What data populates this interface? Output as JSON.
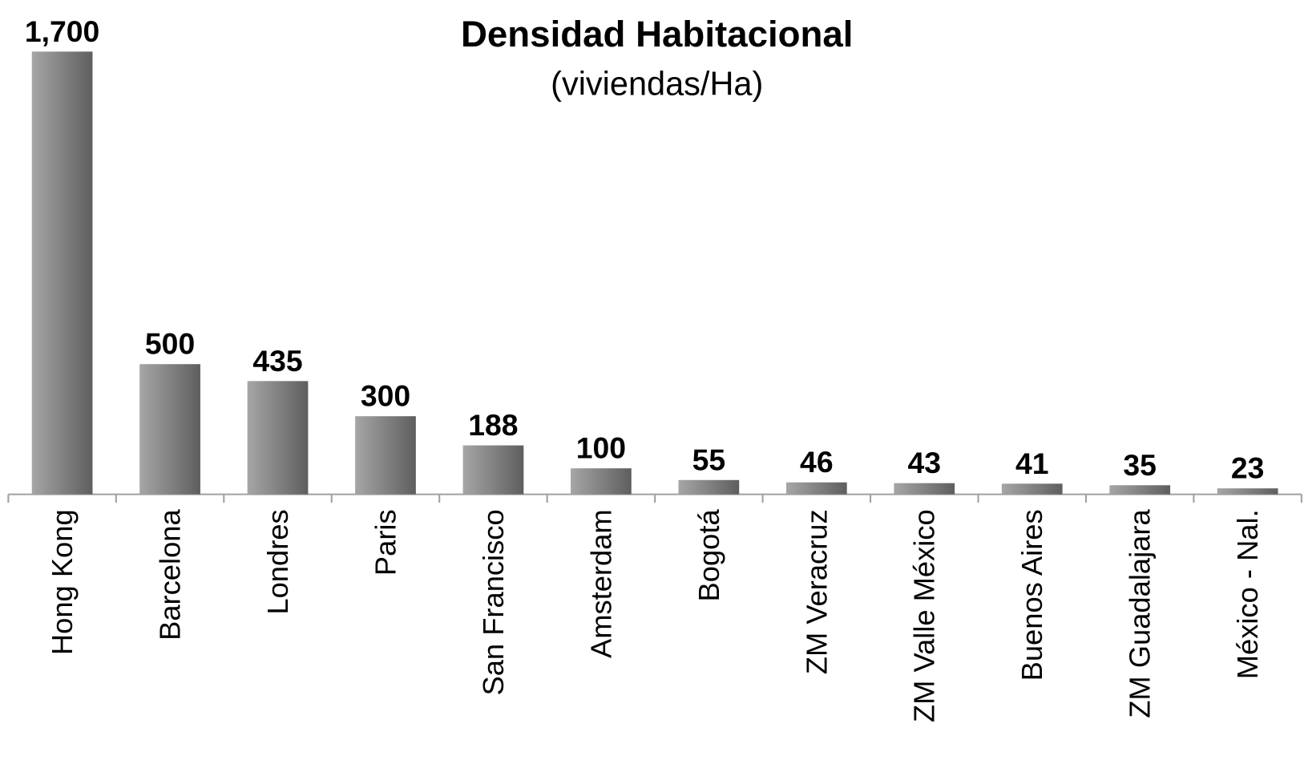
{
  "chart_data": {
    "type": "bar",
    "title": "Densidad Habitacional",
    "subtitle": "(viviendas/Ha)",
    "categories": [
      "Hong Kong",
      "Barcelona",
      "Londres",
      "Paris",
      "San Francisco",
      "Amsterdam",
      "Bogotá",
      "ZM Veracruz",
      "ZM Valle México",
      "Buenos Aires",
      "ZM Guadalajara",
      "México - Nal."
    ],
    "values": [
      1700,
      500,
      435,
      300,
      188,
      100,
      55,
      46,
      43,
      41,
      35,
      23
    ],
    "value_labels": [
      "1,700",
      "500",
      "435",
      "300",
      "188",
      "100",
      "55",
      "46",
      "43",
      "41",
      "35",
      "23"
    ],
    "gradient": [
      "#a6a6a6",
      "#5e5e5e"
    ]
  }
}
